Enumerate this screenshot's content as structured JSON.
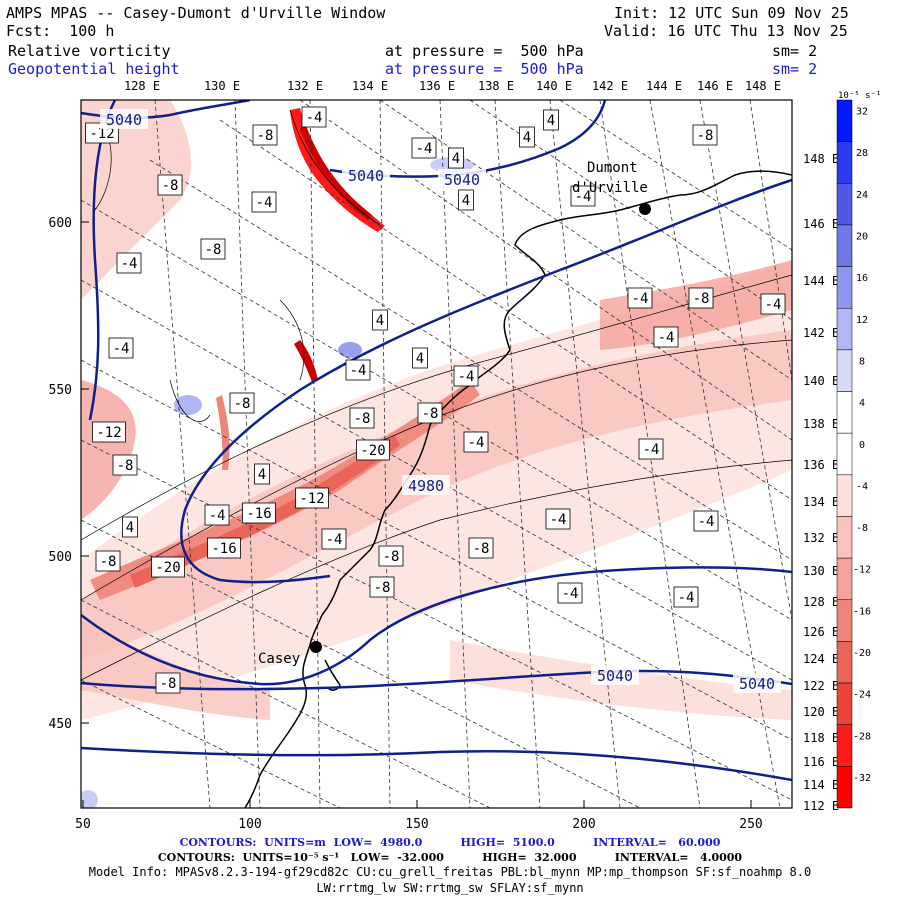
{
  "header": {
    "title": "AMPS MPAS -- Casey-Dumont d'Urville Window",
    "forecast": "Fcst:  100 h",
    "init": "Init: 12 UTC Sun 09 Nov 25",
    "valid": "Valid: 16 UTC Thu 13 Nov 25",
    "field1": {
      "name": "Relative vorticity",
      "level": "at pressure =  500 hPa",
      "smooth": "sm= 2"
    },
    "field2": {
      "name": "Geopotential height",
      "level": "at pressure =  500 hPa",
      "smooth": "sm= 2"
    }
  },
  "map": {
    "top_lon_labels": [
      "128 E",
      "130 E",
      "132 E",
      "134 E",
      "136 E",
      "138 E",
      "140 E",
      "142 E",
      "144 E",
      "146 E",
      "148 E"
    ],
    "right_lon_labels": [
      "148 E",
      "146 E",
      "144 E",
      "142 E",
      "140 E",
      "138 E",
      "136 E",
      "134 E",
      "132 E",
      "130 E",
      "128 E",
      "126 E",
      "124 E",
      "122 E",
      "120 E",
      "118 E",
      "116 E",
      "114 E",
      "112 E"
    ],
    "x_ticks": [
      "50",
      "100",
      "150",
      "200",
      "250"
    ],
    "y_ticks": [
      "600",
      "550",
      "500",
      "450"
    ],
    "stations": [
      {
        "name": "Dumont\nd'Urville",
        "line1": "Dumont",
        "line2": "d'Urville"
      },
      {
        "name": "Casey"
      }
    ],
    "height_labels": [
      "5040",
      "5040",
      "5040",
      "5040",
      "4980",
      "5040"
    ],
    "vorticity_labels": [
      "-12",
      "-8",
      "-8",
      "-4",
      "-4",
      "-8",
      "-4",
      "4",
      "4",
      "4",
      "4",
      "-4",
      "-4",
      "-8",
      "-12",
      "-8",
      "-8",
      "4",
      "-4",
      "-8",
      "-20",
      "-16",
      "-16",
      "-12",
      "-20",
      "-8",
      "-8",
      "-4",
      "-4",
      "-4",
      "-4",
      "-4",
      "-4",
      "-8",
      "-8",
      "-4",
      "-4",
      "-8",
      "-8",
      "-4",
      "-4",
      "-4",
      "-4",
      "-4",
      "4",
      "4",
      "4",
      "-8"
    ]
  },
  "colorbar": {
    "unit_label": "10⁻⁵ s⁻¹",
    "ticks": [
      "32",
      "28",
      "24",
      "20",
      "16",
      "12",
      "8",
      "4",
      "0",
      "-4",
      "-8",
      "-12",
      "-16",
      "-20",
      "-24",
      "-28",
      "-32"
    ],
    "colors": [
      "#0019ff",
      "#2a3cf2",
      "#4e5ae6",
      "#6e78e6",
      "#8f96ee",
      "#b1b6f4",
      "#d6d9fa",
      "#ffffff",
      "#ffffff",
      "#fde0dc",
      "#f9c2bb",
      "#f4a39a",
      "#ef8479",
      "#eb6458",
      "#e84539",
      "#ff1a1a",
      "#ff0000"
    ]
  },
  "footer": {
    "line1": "CONTOURS:  UNITS=m  LOW=  4980.0          HIGH=  5100.0          INTERVAL=   60.000",
    "line2": "CONTOURS:  UNITS=10⁻⁵ s⁻¹   LOW=  -32.000          HIGH=  32.000          INTERVAL=   4.0000",
    "line3": "Model Info: MPASv8.2.3-194-gf29cd82c CU:cu_grell_freitas PBL:bl_mynn MP:mp_thompson SF:sf_noahmp 8.0",
    "line4": "LW:rrtmg_lw SW:rrtmg_sw SFLAY:sf_mynn"
  }
}
